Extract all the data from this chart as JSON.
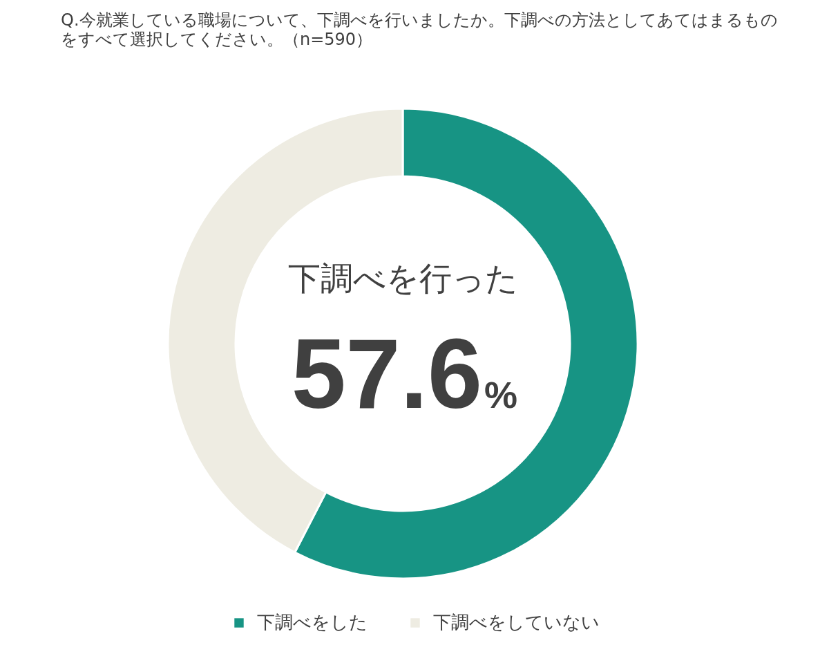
{
  "chart_data": {
    "type": "donut",
    "title": "Q.今就業している職場について、下調べを行いましたか。下調べの方法としてあてはまるものをすべて選択してください。（n=590）",
    "categories": [
      "下調べをした",
      "下調べをしていない"
    ],
    "values": [
      57.6,
      42.4
    ],
    "colors": [
      "#179484",
      "#eeece2"
    ],
    "annotations": [
      "下調べを行った",
      "57.6%"
    ],
    "legend": "bottom"
  }
}
